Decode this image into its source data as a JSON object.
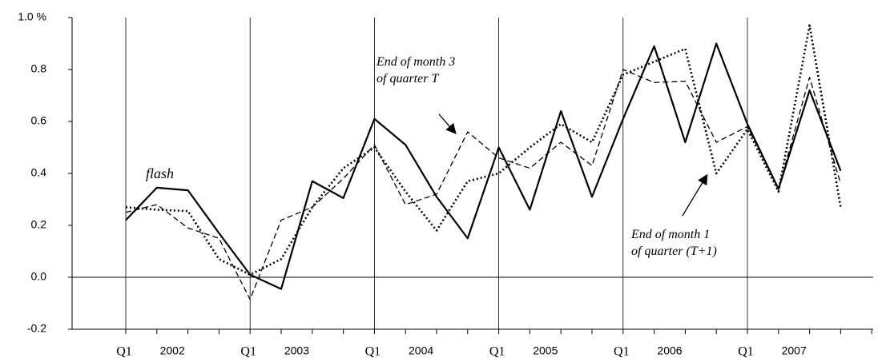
{
  "chart_data": {
    "type": "line",
    "categories": [
      "Q1",
      null,
      null,
      null,
      "Q1",
      null,
      null,
      null,
      "Q1",
      null,
      null,
      null,
      "Q1",
      null,
      null,
      null,
      "Q1",
      null,
      null,
      null,
      "Q1",
      null,
      null,
      null
    ],
    "years": [
      "2002",
      "2003",
      "2004",
      "2005",
      "2006",
      "2007"
    ],
    "ylim": [
      -0.2,
      1.0
    ],
    "yticks": [
      -0.2,
      {
        "value": 0,
        "label": "0.0"
      },
      0.2,
      0.4,
      0.6,
      0.8,
      {
        "value": 1,
        "label": "1.0 %"
      }
    ],
    "grid": true,
    "series": [
      {
        "name": "flash",
        "color": "#000000",
        "dash": "solid",
        "values": [
          0.22,
          0.345,
          0.335,
          0.17,
          0.01,
          -0.045,
          0.37,
          0.305,
          0.61,
          0.51,
          0.31,
          0.15,
          0.5,
          0.26,
          0.64,
          0.31,
          0.61,
          0.89,
          0.52,
          0.9,
          0.59,
          0.34,
          0.72,
          0.41
        ]
      },
      {
        "name": "End of month 3\nof quarter T",
        "color": "#000000",
        "dash": "dashed",
        "values": [
          0.25,
          0.28,
          0.19,
          0.15,
          -0.085,
          0.22,
          0.27,
          0.38,
          0.51,
          0.28,
          0.32,
          0.56,
          0.46,
          0.42,
          0.52,
          0.43,
          0.8,
          0.75,
          0.755,
          0.52,
          0.58,
          0.34,
          0.77,
          0.36
        ]
      },
      {
        "name": "End of month 1\nof quarter (T+1)",
        "color": "#000000",
        "dash": "dotted",
        "values": [
          0.27,
          0.26,
          0.255,
          0.07,
          0.01,
          0.07,
          0.27,
          0.42,
          0.5,
          0.33,
          0.18,
          0.37,
          0.4,
          0.5,
          0.59,
          0.52,
          0.78,
          0.83,
          0.88,
          0.4,
          0.57,
          0.33,
          0.97,
          0.27
        ]
      }
    ]
  }
}
